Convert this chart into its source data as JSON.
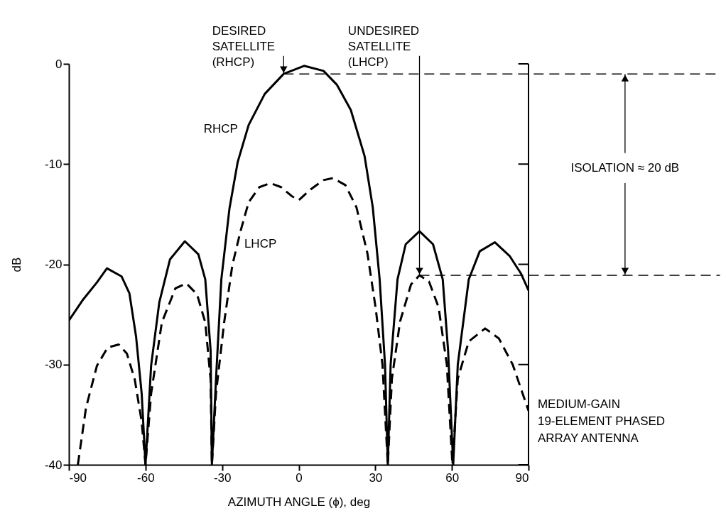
{
  "chart_data": {
    "type": "line",
    "xlabel": "AZIMUTH ANGLE (ϕ), deg",
    "ylabel": "dB",
    "xlim": [
      -90,
      90
    ],
    "xticks": [
      -90,
      -60,
      -30,
      0,
      30,
      60,
      90
    ],
    "ylim": [
      -40,
      0
    ],
    "yticks": [
      -40,
      -30,
      -20,
      -10,
      0
    ],
    "grid": false,
    "series": [
      {
        "name": "RHCP",
        "color": "#000000",
        "line_style": "solid",
        "x": [
          -90,
          -84.4,
          -79,
          -75.1,
          -69.4,
          -66.3,
          -63.7,
          -61.5,
          -60,
          -57.8,
          -54.6,
          -50.4,
          -44.6,
          -39.3,
          -36.6,
          -34.5,
          -34,
          -32.4,
          -30.3,
          -27.1,
          -23.9,
          -19.6,
          -13.3,
          -5.9,
          2.1,
          9.7,
          15,
          20.4,
          25.8,
          29,
          31.7,
          33.8,
          34.9,
          36,
          38.7,
          41.9,
          47.3,
          52.6,
          56.4,
          58.5,
          60.5,
          62.3,
          66.6,
          70.9,
          76.8,
          82.7,
          87,
          90
        ],
        "values": [
          -25.6,
          -23.5,
          -21.8,
          -20.4,
          -21.2,
          -22.9,
          -27.2,
          -32.9,
          -40,
          -30.1,
          -23.8,
          -19.5,
          -17.7,
          -19,
          -21.5,
          -28.6,
          -40,
          -31.5,
          -21.5,
          -14.4,
          -9.8,
          -6.1,
          -3,
          -1,
          -0.2,
          -0.7,
          -2.1,
          -4.6,
          -9.2,
          -14.3,
          -21.5,
          -30,
          -40,
          -30,
          -21.5,
          -18,
          -16.7,
          -18,
          -21.5,
          -28.6,
          -40,
          -30,
          -21.5,
          -18.7,
          -17.8,
          -19.2,
          -20.9,
          -22.6
        ]
      },
      {
        "name": "LHCP",
        "color": "#000000",
        "line_style": "dashed",
        "x": [
          -86.5,
          -83.3,
          -79,
          -74.8,
          -70.5,
          -67.3,
          -64.2,
          -61.5,
          -60,
          -57.8,
          -53.6,
          -48.3,
          -44,
          -39.8,
          -36.6,
          -34.5,
          -34,
          -32.4,
          -29.2,
          -26,
          -22.8,
          -19.6,
          -15.4,
          -11.1,
          -6.9,
          -2.7,
          0,
          4.3,
          9.7,
          13.4,
          18.3,
          22.6,
          26.9,
          30.1,
          32.8,
          34.9,
          36.5,
          39.7,
          44,
          47.3,
          51,
          54.8,
          58,
          60.2,
          62.3,
          66.6,
          73,
          78.4,
          83.8,
          90
        ],
        "values": [
          -40,
          -34.3,
          -30.1,
          -28.3,
          -28,
          -28.9,
          -31.5,
          -35.7,
          -40,
          -32.9,
          -25.8,
          -22.4,
          -21.9,
          -23,
          -25.8,
          -31.5,
          -40,
          -32.9,
          -25.8,
          -20.1,
          -16.7,
          -13.8,
          -12.3,
          -11.9,
          -12.3,
          -13.2,
          -13.6,
          -12.6,
          -11.6,
          -11.4,
          -12.1,
          -14.3,
          -18.9,
          -24.3,
          -30,
          -40,
          -31.4,
          -25.7,
          -22,
          -21.1,
          -21.7,
          -24.3,
          -30,
          -40,
          -31.4,
          -27.7,
          -26.4,
          -27.4,
          -30,
          -34.6
        ]
      }
    ],
    "ref_lines": [
      {
        "axis": "y",
        "value": -1,
        "line_style": "dashed",
        "color": "#000000"
      },
      {
        "axis": "y",
        "value": -21.1,
        "line_style": "dashed",
        "color": "#000000"
      }
    ],
    "annotations": [
      {
        "text": "DESIRED\nSATELLITE\n(RHCP)",
        "x": -5.9,
        "y": -1
      },
      {
        "text": "UNDESIRED\nSATELLITE\n(LHCP)",
        "x": 47.3,
        "y": -21.1
      },
      "ISOLATION ≈ 20 dB",
      "MEDIUM-GAIN\n19-ELEMENT PHASED\nARRAY ANTENNA"
    ]
  }
}
